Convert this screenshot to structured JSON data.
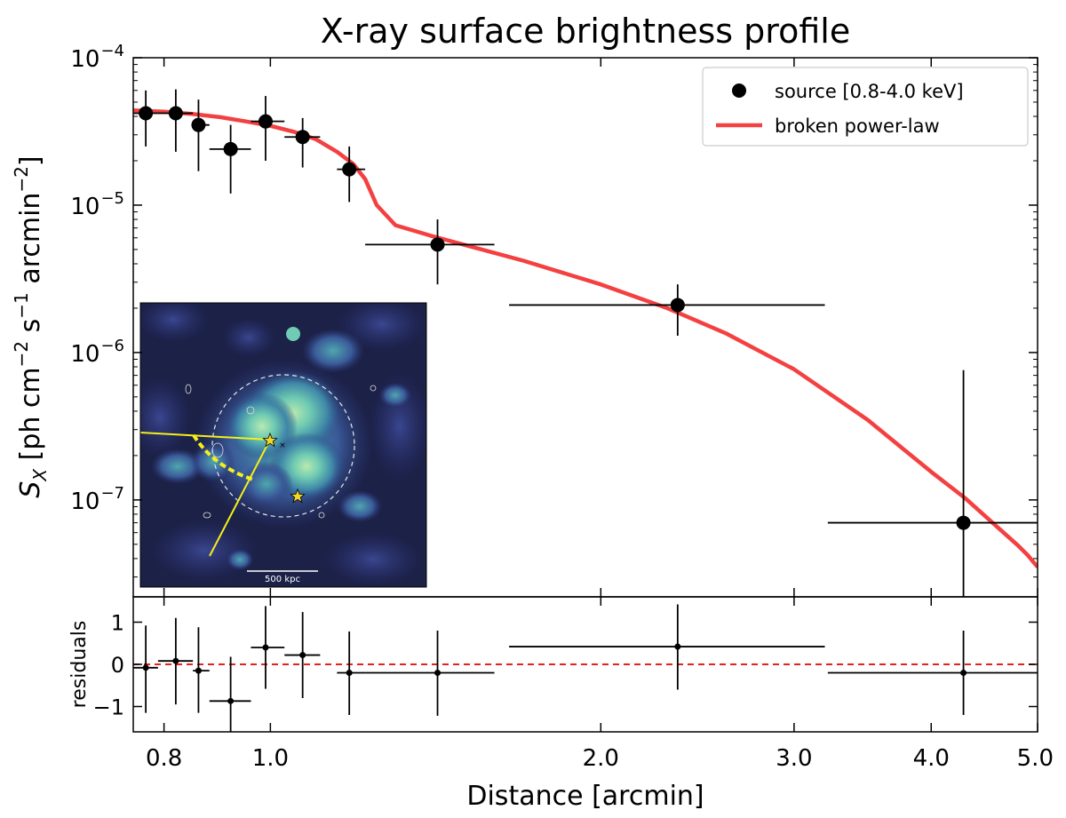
{
  "chart_data": [
    {
      "type": "scatter",
      "panel": "main",
      "title": "X-ray surface brightness profile",
      "xlabel": "Distance [arcmin]",
      "ylabel_main": "S",
      "ylabel_sub": "X",
      "ylabel_units": "[ph cm",
      "ylabel_exp1": "−2",
      "ylabel_mid": " s",
      "ylabel_exp2": "−1",
      "ylabel_mid2": " arcmin",
      "ylabel_exp3": "−2",
      "ylabel_end": "]",
      "x_scale": "log",
      "y_scale": "log",
      "xlim": [
        0.75,
        5.0
      ],
      "ylim": [
        2.2e-08,
        0.0001
      ],
      "x_ticks": [
        {
          "value": 0.8,
          "label": "0.8"
        },
        {
          "value": 1.0,
          "label": "1.0"
        },
        {
          "value": 2.0,
          "label": "2.0"
        },
        {
          "value": 3.0,
          "label": "3.0"
        },
        {
          "value": 4.0,
          "label": "4.0"
        },
        {
          "value": 5.0,
          "label": "5.0"
        }
      ],
      "y_ticks": [
        {
          "value": 1e-07,
          "base": "10",
          "exp": "−7"
        },
        {
          "value": 1e-06,
          "base": "10",
          "exp": "−6"
        },
        {
          "value": 1e-05,
          "base": "10",
          "exp": "−5"
        },
        {
          "value": 0.0001,
          "base": "10",
          "exp": "−4"
        }
      ],
      "legend": {
        "position": "top-right",
        "entries": [
          {
            "label": "source [0.8-4.0 keV]",
            "marker": "circle",
            "color": "#000000"
          },
          {
            "label": "broken power-law",
            "marker": "line",
            "color": "#f44040"
          }
        ]
      },
      "series": [
        {
          "name": "source [0.8-4.0 keV]",
          "color": "#000000",
          "points": [
            {
              "x": 0.77,
              "y": 4.2e-05,
              "xlo": 0.75,
              "xhi": 0.79,
              "ylo": 2.5e-05,
              "yhi": 6e-05
            },
            {
              "x": 0.82,
              "y": 4.2e-05,
              "xlo": 0.79,
              "xhi": 0.85,
              "ylo": 2.3e-05,
              "yhi": 6.1e-05
            },
            {
              "x": 0.86,
              "y": 3.5e-05,
              "xlo": 0.85,
              "xhi": 0.88,
              "ylo": 1.7e-05,
              "yhi": 5.2e-05
            },
            {
              "x": 0.92,
              "y": 2.4e-05,
              "xlo": 0.88,
              "xhi": 0.96,
              "ylo": 1.2e-05,
              "yhi": 3.5e-05
            },
            {
              "x": 0.99,
              "y": 3.7e-05,
              "xlo": 0.96,
              "xhi": 1.03,
              "ylo": 2e-05,
              "yhi": 5.5e-05
            },
            {
              "x": 1.07,
              "y": 2.9e-05,
              "xlo": 1.03,
              "xhi": 1.11,
              "ylo": 1.8e-05,
              "yhi": 3.9e-05
            },
            {
              "x": 1.18,
              "y": 1.75e-05,
              "xlo": 1.15,
              "xhi": 1.22,
              "ylo": 1.05e-05,
              "yhi": 2.5e-05
            },
            {
              "x": 1.42,
              "y": 5.4e-06,
              "xlo": 1.22,
              "xhi": 1.6,
              "ylo": 2.9e-06,
              "yhi": 8e-06
            },
            {
              "x": 2.35,
              "y": 2.1e-06,
              "xlo": 1.65,
              "xhi": 3.2,
              "ylo": 1.3e-06,
              "yhi": 2.9e-06
            },
            {
              "x": 4.28,
              "y": 7e-08,
              "xlo": 3.22,
              "xhi": 5.0,
              "ylo": 2.2e-08,
              "yhi": 7.6e-07
            }
          ]
        },
        {
          "name": "broken power-law",
          "color": "#f44040",
          "type": "line",
          "x": [
            0.75,
            0.8,
            0.85,
            0.9,
            0.95,
            1.0,
            1.05,
            1.1,
            1.15,
            1.19,
            1.22,
            1.25,
            1.3,
            1.4,
            1.5,
            1.7,
            2.0,
            2.3,
            2.6,
            3.0,
            3.5,
            4.0,
            4.3,
            4.6,
            4.8,
            4.9,
            5.0
          ],
          "y": [
            4.4e-05,
            4.3e-05,
            4.15e-05,
            3.95e-05,
            3.7e-05,
            3.45e-05,
            3.15e-05,
            2.8e-05,
            2.3e-05,
            1.9e-05,
            1.5e-05,
            1e-05,
            7.3e-06,
            6.2e-06,
            5.4e-06,
            4.2e-06,
            2.9e-06,
            2e-06,
            1.35e-06,
            7.7e-07,
            3.5e-07,
            1.55e-07,
            1.02e-07,
            6.5e-08,
            4.9e-08,
            4.2e-08,
            3.5e-08
          ]
        }
      ]
    },
    {
      "type": "scatter",
      "panel": "residuals",
      "ylabel": "residuals",
      "x_scale": "log",
      "xlim": [
        0.75,
        5.0
      ],
      "ylim": [
        -1.6,
        1.6
      ],
      "y_ticks": [
        {
          "value": 1,
          "label": "1"
        },
        {
          "value": 0,
          "label": "0"
        },
        {
          "value": -1,
          "label": "−1"
        }
      ],
      "zero_line_color": "#e32222",
      "series": [
        {
          "name": "residuals",
          "color": "#000000",
          "points": [
            {
              "x": 0.77,
              "y": -0.08,
              "xlo": 0.75,
              "xhi": 0.79,
              "ylo": -1.15,
              "yhi": 0.92
            },
            {
              "x": 0.82,
              "y": 0.08,
              "xlo": 0.79,
              "xhi": 0.85,
              "ylo": -0.95,
              "yhi": 1.1
            },
            {
              "x": 0.86,
              "y": -0.15,
              "xlo": 0.85,
              "xhi": 0.88,
              "ylo": -1.15,
              "yhi": 0.88
            },
            {
              "x": 0.92,
              "y": -0.87,
              "xlo": 0.88,
              "xhi": 0.96,
              "ylo": -1.6,
              "yhi": 0.18
            },
            {
              "x": 0.99,
              "y": 0.4,
              "xlo": 0.96,
              "xhi": 1.03,
              "ylo": -0.58,
              "yhi": 1.38
            },
            {
              "x": 1.07,
              "y": 0.22,
              "xlo": 1.03,
              "xhi": 1.11,
              "ylo": -0.8,
              "yhi": 1.24
            },
            {
              "x": 1.18,
              "y": -0.2,
              "xlo": 1.15,
              "xhi": 1.22,
              "ylo": -1.2,
              "yhi": 0.78
            },
            {
              "x": 1.42,
              "y": -0.2,
              "xlo": 1.22,
              "xhi": 1.6,
              "ylo": -1.22,
              "yhi": 0.8
            },
            {
              "x": 2.35,
              "y": 0.42,
              "xlo": 1.65,
              "xhi": 3.2,
              "ylo": -0.6,
              "yhi": 1.42
            },
            {
              "x": 4.28,
              "y": -0.2,
              "xlo": 3.22,
              "xhi": 5.0,
              "ylo": -1.2,
              "yhi": 0.8
            }
          ]
        }
      ]
    }
  ],
  "inset": {
    "scale_bar_label": "500 kpc",
    "star_color": "#f2d729",
    "sector_color": "#f5ef1a",
    "circle_color": "#e8e8e8",
    "background_color": "#1c2148",
    "emission_color": "#8fd8b9"
  }
}
